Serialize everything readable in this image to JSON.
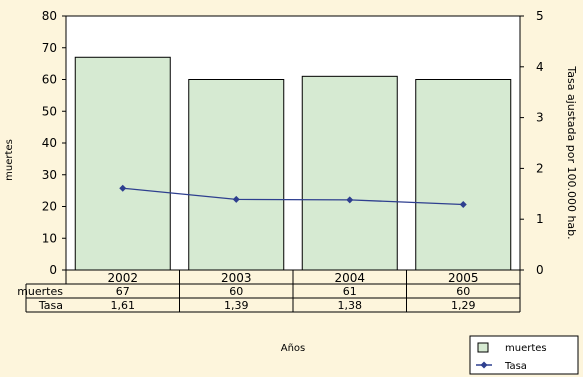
{
  "chart_data": {
    "type": "bar",
    "categories": [
      "2002",
      "2003",
      "2004",
      "2005"
    ],
    "series": [
      {
        "name": "muertes",
        "type": "bar",
        "axis": "left",
        "values": [
          67,
          60,
          61,
          60
        ],
        "labels": [
          "67",
          "60",
          "61",
          "60"
        ],
        "color": "#D6EAD2"
      },
      {
        "name": "Tasa",
        "type": "line",
        "axis": "right",
        "values": [
          1.61,
          1.39,
          1.38,
          1.29
        ],
        "labels": [
          "1,61",
          "1,39",
          "1,38",
          "1,29"
        ],
        "color": "#2E3F8F"
      }
    ],
    "xlabel": "Años",
    "ylabel": "muertes",
    "y2label": "Tasa ajustada por 100.000 hab.",
    "ylim": [
      0,
      80
    ],
    "y2lim": [
      0,
      5
    ],
    "yticks": [
      "0",
      "10",
      "20",
      "30",
      "40",
      "50",
      "60",
      "70",
      "80"
    ],
    "y2ticks": [
      "0",
      "1",
      "2",
      "3",
      "4",
      "5"
    ],
    "legend_position": "bottom-right",
    "plot_background": "#FFFFFF",
    "page_background": "#FDF5DC"
  }
}
